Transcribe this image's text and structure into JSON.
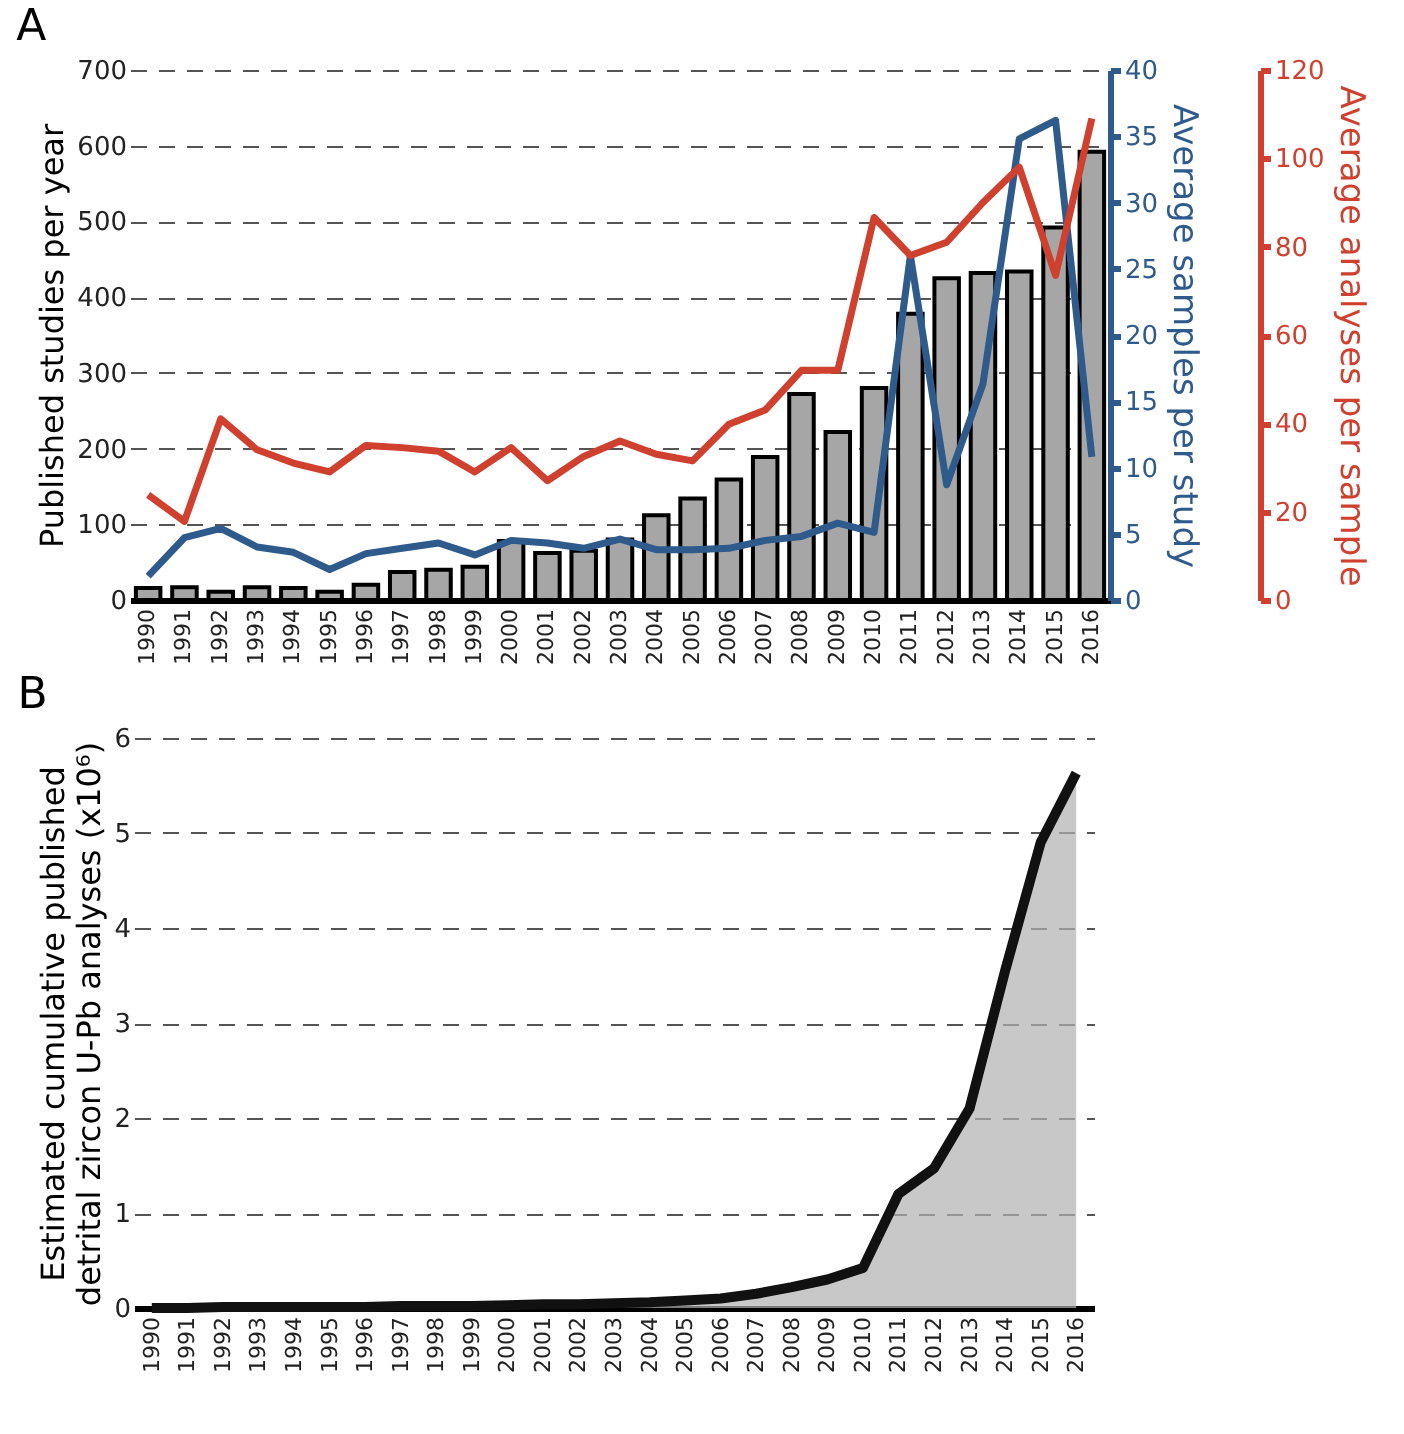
{
  "chart_data": [
    {
      "type": "bar",
      "title": "A",
      "categories": [
        "1990",
        "1991",
        "1992",
        "1993",
        "1994",
        "1995",
        "1996",
        "1997",
        "1998",
        "1999",
        "2000",
        "2001",
        "2002",
        "2003",
        "2004",
        "2005",
        "2006",
        "2007",
        "2008",
        "2009",
        "2010",
        "2011",
        "2012",
        "2013",
        "2014",
        "2015",
        "2016"
      ],
      "series": [
        {
          "color": "#a6a6a6",
          "values": [
            16,
            17,
            11,
            17,
            16,
            11,
            20,
            37,
            40,
            44,
            78,
            62,
            65,
            80,
            112,
            134,
            159,
            189,
            272,
            222,
            280,
            378,
            425,
            432,
            434,
            492,
            592
          ]
        },
        {
          "type": "line",
          "axis": "y2",
          "color": "#2e5a8c",
          "values": [
            1.8,
            4.7,
            5.4,
            4,
            3.6,
            2.3,
            3.5,
            3.9,
            4.3,
            3.4,
            4.5,
            4.3,
            3.9,
            4.6,
            3.8,
            3.8,
            3.9,
            4.5,
            4.8,
            5.8,
            5.1,
            26,
            8.7,
            16.3,
            34.8,
            36.2,
            10.8
          ]
        },
        {
          "type": "line",
          "axis": "y3",
          "color": "#d0402f",
          "values": [
            23.8,
            17.8,
            41,
            34,
            31,
            29,
            35,
            34.5,
            33.7,
            29,
            34.5,
            27,
            32.5,
            36,
            33,
            31.5,
            39.8,
            43,
            52,
            52,
            86.6,
            78,
            81,
            90,
            98,
            73.5,
            109
          ]
        }
      ],
      "ylabel": "Published studies per year",
      "ylim": [
        0,
        700
      ],
      "yticks": [
        0,
        100,
        200,
        300,
        400,
        500,
        600,
        700
      ],
      "y2label": "Average samples per study",
      "y2lim": [
        0,
        40
      ],
      "y2ticks": [
        0,
        5,
        10,
        15,
        20,
        25,
        30,
        35,
        40
      ],
      "y3label": "Average analyses per sample",
      "y3lim": [
        0,
        120
      ],
      "y3ticks": [
        0,
        20,
        40,
        60,
        80,
        100,
        120
      ],
      "grid": "y"
    },
    {
      "type": "area",
      "title": "B",
      "categories": [
        "1990",
        "1991",
        "1992",
        "1993",
        "1994",
        "1995",
        "1996",
        "1997",
        "1998",
        "1999",
        "2000",
        "2001",
        "2002",
        "2003",
        "2004",
        "2005",
        "2006",
        "2007",
        "2008",
        "2009",
        "2010",
        "2011",
        "2012",
        "2013",
        "2014",
        "2015",
        "2016"
      ],
      "color": "#b0b0b0",
      "values": [
        0,
        0,
        0.01,
        0.01,
        0.01,
        0.01,
        0.01,
        0.02,
        0.02,
        0.02,
        0.03,
        0.04,
        0.04,
        0.05,
        0.06,
        0.08,
        0.1,
        0.15,
        0.22,
        0.3,
        0.42,
        1.2,
        1.47,
        2.1,
        3.55,
        4.9,
        5.63
      ],
      "ylabel": "Estimated cumulative published\ndetrital zircon U-Pb analyses (x10⁶)",
      "ylim": [
        0,
        6
      ],
      "yticks": [
        0,
        1,
        2,
        3,
        4,
        5,
        6
      ],
      "grid": "y"
    }
  ]
}
